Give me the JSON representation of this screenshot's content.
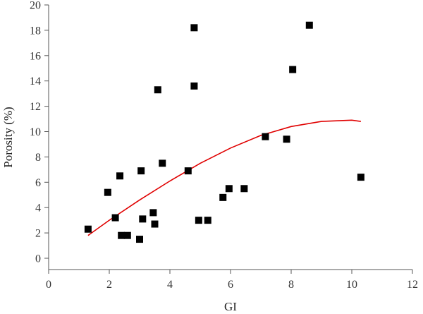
{
  "chart_data": {
    "type": "scatter",
    "title": "",
    "xlabel": "GI",
    "ylabel": "Porosity (%)",
    "xlim": [
      0,
      12
    ],
    "ylim": [
      0,
      20
    ],
    "x_ticks": [
      "0",
      "2",
      "4",
      "6",
      "8",
      "10",
      "12"
    ],
    "y_ticks": [
      "0",
      "2",
      "4",
      "6",
      "8",
      "10",
      "12",
      "14",
      "16",
      "18",
      "20"
    ],
    "grid": false,
    "legend": "none",
    "series": [
      {
        "marker": "square",
        "color": "#000000",
        "points": [
          [
            1.3,
            2.3
          ],
          [
            1.95,
            5.2
          ],
          [
            2.2,
            3.2
          ],
          [
            2.35,
            6.5
          ],
          [
            2.4,
            1.8
          ],
          [
            2.6,
            1.8
          ],
          [
            3.0,
            1.5
          ],
          [
            3.05,
            6.9
          ],
          [
            3.1,
            3.1
          ],
          [
            3.45,
            3.6
          ],
          [
            3.5,
            2.7
          ],
          [
            3.6,
            13.3
          ],
          [
            3.75,
            7.5
          ],
          [
            4.6,
            6.9
          ],
          [
            4.8,
            18.2
          ],
          [
            4.8,
            13.6
          ],
          [
            4.95,
            3.0
          ],
          [
            5.25,
            3.0
          ],
          [
            5.75,
            4.8
          ],
          [
            5.95,
            5.5
          ],
          [
            6.45,
            5.5
          ],
          [
            7.15,
            9.6
          ],
          [
            7.85,
            9.4
          ],
          [
            8.05,
            14.9
          ],
          [
            8.6,
            18.4
          ],
          [
            10.3,
            6.4
          ]
        ]
      }
    ],
    "fit_curve": {
      "type": "quadratic",
      "color": "#e00000",
      "x_range": [
        1.3,
        10.3
      ],
      "points": [
        [
          1.3,
          1.8
        ],
        [
          2.0,
          3.0
        ],
        [
          3.0,
          4.6
        ],
        [
          4.0,
          6.1
        ],
        [
          5.0,
          7.5
        ],
        [
          6.0,
          8.7
        ],
        [
          7.0,
          9.7
        ],
        [
          8.0,
          10.4
        ],
        [
          9.0,
          10.8
        ],
        [
          10.0,
          10.9
        ],
        [
          10.3,
          10.8
        ]
      ]
    }
  }
}
